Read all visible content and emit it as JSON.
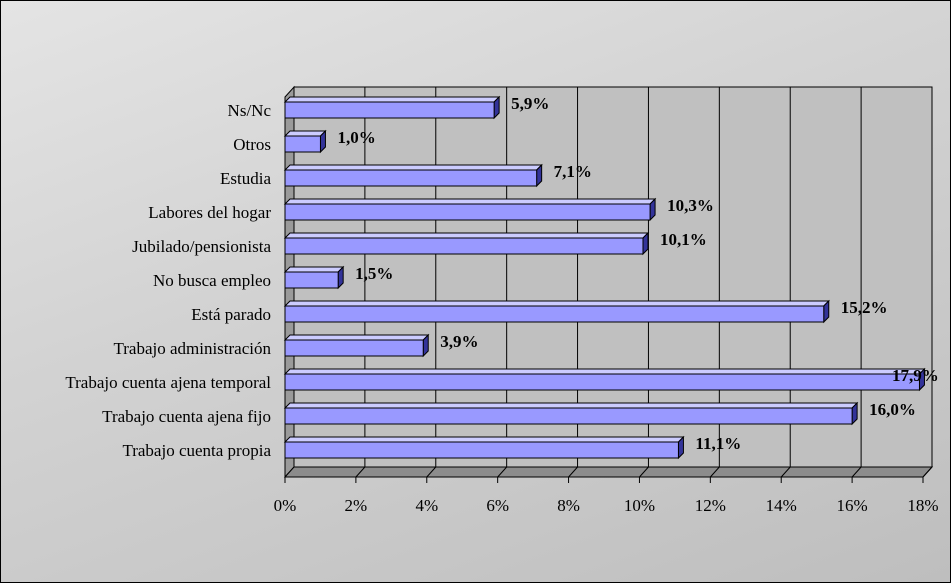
{
  "chart_data": {
    "type": "bar",
    "orientation": "horizontal",
    "title": "",
    "xlabel": "",
    "ylabel": "",
    "categories": [
      "Trabajo cuenta propia",
      "Trabajo cuenta ajena fijo",
      "Trabajo cuenta ajena temporal",
      "Trabajo administración",
      "Está parado",
      "No busca empleo",
      "Jubilado/pensionista",
      "Labores del hogar",
      "Estudia",
      "Otros",
      "Ns/Nc"
    ],
    "values": [
      11.1,
      16.0,
      17.9,
      3.9,
      15.2,
      1.5,
      10.1,
      10.3,
      7.1,
      1.0,
      5.9
    ],
    "value_labels": [
      "11,1%",
      "16,0%",
      "17,9%",
      "3,9%",
      "15,2%",
      "1,5%",
      "10,1%",
      "10,3%",
      "7,1%",
      "1,0%",
      "5,9%"
    ],
    "xlim": [
      0,
      18
    ],
    "x_ticks": [
      0,
      2,
      4,
      6,
      8,
      10,
      12,
      14,
      16,
      18
    ],
    "x_tick_labels": [
      "0%",
      "2%",
      "4%",
      "6%",
      "8%",
      "10%",
      "12%",
      "14%",
      "16%",
      "18%"
    ],
    "grid": true,
    "legend": "none",
    "style": "3d",
    "colors": {
      "bar_front": "#9999ff",
      "bar_top": "#ccccff",
      "bar_side": "#333399",
      "plot_wall": "#c0c0c0",
      "gridline": "#000000"
    }
  }
}
